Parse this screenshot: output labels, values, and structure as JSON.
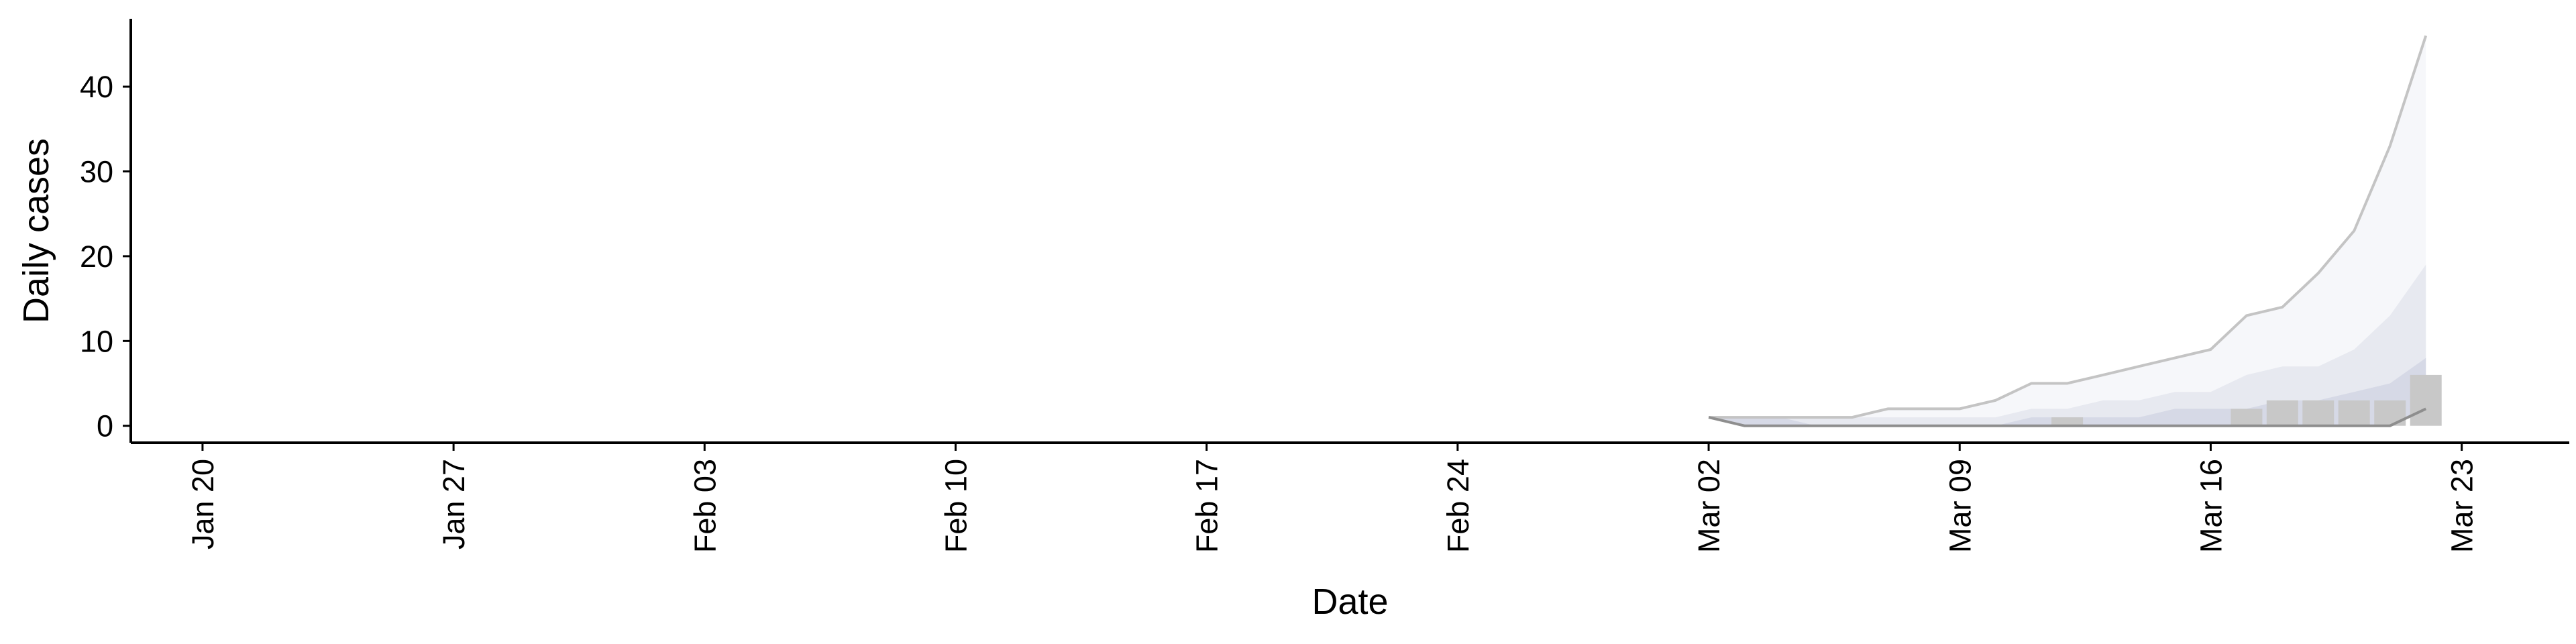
{
  "chart_data": {
    "type": "area",
    "title": "",
    "xlabel": "Date",
    "ylabel": "Daily cases",
    "xlim": [
      "2020-01-18",
      "2020-03-26"
    ],
    "ylim": [
      -2,
      48
    ],
    "grid": false,
    "legend": "none",
    "x_ticks": [
      {
        "date": "2020-01-20",
        "label": "Jan 20"
      },
      {
        "date": "2020-01-27",
        "label": "Jan 27"
      },
      {
        "date": "2020-02-03",
        "label": "Feb 03"
      },
      {
        "date": "2020-02-10",
        "label": "Feb 10"
      },
      {
        "date": "2020-02-17",
        "label": "Feb 17"
      },
      {
        "date": "2020-02-24",
        "label": "Feb 24"
      },
      {
        "date": "2020-03-02",
        "label": "Mar 02"
      },
      {
        "date": "2020-03-09",
        "label": "Mar 09"
      },
      {
        "date": "2020-03-16",
        "label": "Mar 16"
      },
      {
        "date": "2020-03-23",
        "label": "Mar 23"
      }
    ],
    "y_ticks": [
      {
        "value": 0,
        "label": "0"
      },
      {
        "value": 10,
        "label": "10"
      },
      {
        "value": 20,
        "label": "20"
      },
      {
        "value": 30,
        "label": "30"
      },
      {
        "value": 40,
        "label": "40"
      }
    ],
    "bars": {
      "color": "#c8c8c8",
      "x": [
        "2020-03-12",
        "2020-03-17",
        "2020-03-18",
        "2020-03-19",
        "2020-03-20",
        "2020-03-21",
        "2020-03-22"
      ],
      "values": [
        1,
        2,
        3,
        3,
        3,
        3,
        6
      ]
    },
    "bands": {
      "x": [
        "2020-03-02",
        "2020-03-03",
        "2020-03-04",
        "2020-03-05",
        "2020-03-06",
        "2020-03-07",
        "2020-03-08",
        "2020-03-09",
        "2020-03-10",
        "2020-03-11",
        "2020-03-12",
        "2020-03-13",
        "2020-03-14",
        "2020-03-15",
        "2020-03-16",
        "2020-03-17",
        "2020-03-18",
        "2020-03-19",
        "2020-03-20",
        "2020-03-21",
        "2020-03-22"
      ],
      "upper_90": [
        1,
        1,
        1,
        1,
        1,
        2,
        2,
        2,
        3,
        5,
        5,
        6,
        7,
        8,
        9,
        13,
        14,
        18,
        23,
        33,
        46
      ],
      "upper_50": [
        1,
        1,
        1,
        1,
        1,
        1,
        1,
        1,
        1,
        2,
        2,
        3,
        3,
        4,
        4,
        6,
        7,
        7,
        9,
        13,
        19
      ],
      "upper_20": [
        1,
        1,
        1,
        0,
        0,
        0,
        0,
        0,
        0,
        1,
        1,
        1,
        1,
        2,
        2,
        2,
        3,
        3,
        4,
        5,
        8
      ],
      "lower": [
        1,
        0,
        0,
        0,
        0,
        0,
        0,
        0,
        0,
        0,
        0,
        0,
        0,
        0,
        0,
        0,
        0,
        0,
        0,
        0,
        2
      ],
      "color_outer": "#f6f7fa",
      "color_mid": "#e7e9f0",
      "color_inner": "#d6d9e6",
      "line_upper_color": "#c4c4c4",
      "line_lower_color": "#8e8e8e"
    }
  }
}
